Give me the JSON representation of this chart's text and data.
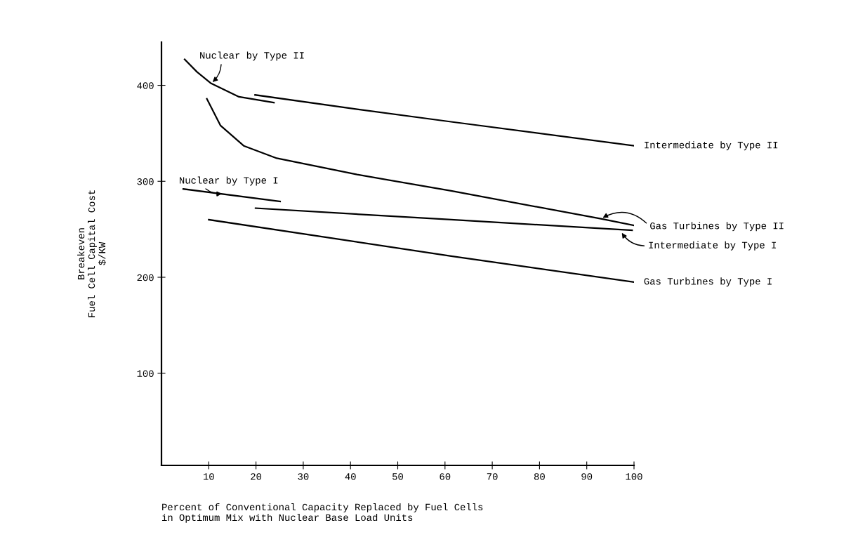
{
  "chart_data": {
    "type": "line",
    "xlabel": "Percent of Conventional Capacity Replaced by Fuel Cells\nin Optimum Mix with Nuclear Base Load Units",
    "ylabel": "Breakeven\nFuel Cell Capital Cost\n$/KW",
    "xlim": [
      0,
      100
    ],
    "ylim": [
      4,
      445
    ],
    "xticks": [
      10,
      20,
      30,
      40,
      50,
      60,
      70,
      80,
      90,
      100
    ],
    "yticks": [
      100,
      200,
      300,
      400
    ],
    "grid": false,
    "marker": "none",
    "line_style": "solid",
    "series": [
      {
        "color": "#000000",
        "x": [
          4.9,
          7.5,
          10.5,
          16.4,
          23.8
        ],
        "values": [
          427,
          414,
          402,
          388,
          382
        ]
      },
      {
        "color": "#000000",
        "x": [
          19.8,
          41.4,
          61.3,
          100
        ],
        "values": [
          390,
          375,
          362,
          337
        ]
      },
      {
        "color": "#000000",
        "x": [
          9.6,
          12.5,
          17.4,
          24.4,
          41.4,
          61.3,
          93,
          100
        ],
        "values": [
          386,
          358,
          337,
          324,
          307,
          290,
          261,
          254
        ]
      },
      {
        "color": "#000000",
        "x": [
          4.6,
          25.1
        ],
        "values": [
          292,
          279
        ]
      },
      {
        "color": "#000000",
        "x": [
          19.9,
          61.3,
          99.6
        ],
        "values": [
          272,
          260,
          249
        ]
      },
      {
        "color": "#000000",
        "x": [
          10,
          61.3,
          100
        ],
        "values": [
          260,
          222,
          195
        ]
      }
    ],
    "annotations": [
      {
        "text": "Nuclear by Type II",
        "x": 10.5,
        "y": 402
      },
      {
        "text": "Nuclear by Type I",
        "x": 13.2,
        "y": 287
      },
      {
        "text": "Intermediate by Type II",
        "x": 100,
        "y": 337
      },
      {
        "text": "Gas Turbines by Type II",
        "x": 93,
        "y": 261
      },
      {
        "text": "Intermediate by Type I",
        "x": 97.2,
        "y": 248
      },
      {
        "text": "Gas Turbines by Type I",
        "x": 100,
        "y": 195
      }
    ]
  }
}
